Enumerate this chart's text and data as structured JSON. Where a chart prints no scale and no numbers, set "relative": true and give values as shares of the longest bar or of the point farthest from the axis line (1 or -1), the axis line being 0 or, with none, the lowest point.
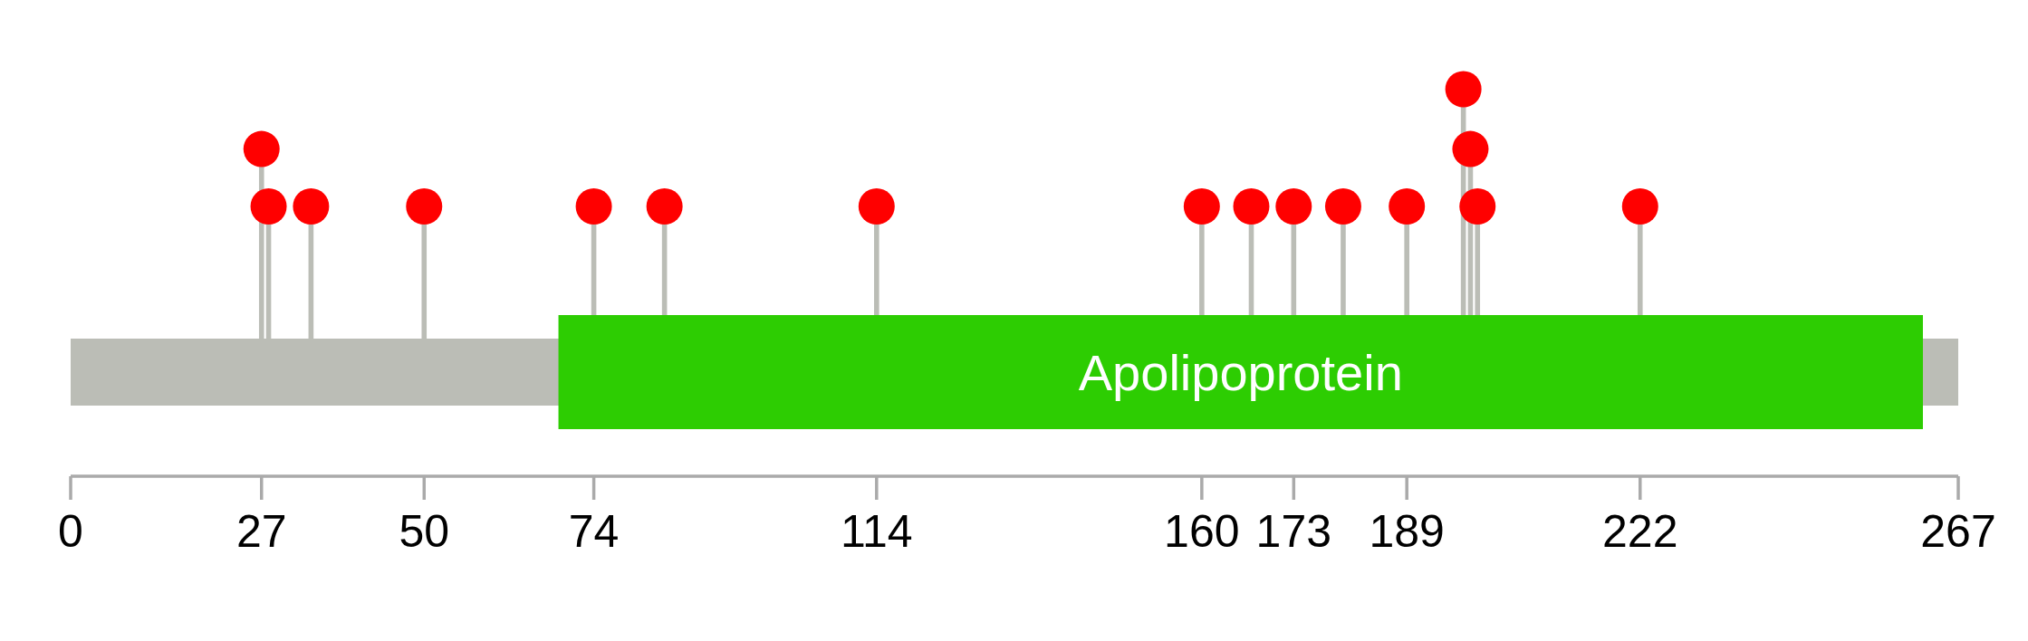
{
  "chart_data": {
    "type": "lollipop",
    "relative": true,
    "marker": "circle",
    "xlim": [
      0,
      267
    ],
    "xticks": [
      0,
      27,
      50,
      74,
      114,
      160,
      173,
      189,
      222,
      267
    ],
    "x": [
      27,
      28,
      34,
      50,
      74,
      84,
      114,
      160,
      167,
      173,
      180,
      189,
      197,
      198,
      199,
      222
    ],
    "series": [
      {
        "color": "#ff0000",
        "values": [
          0.76,
          0.53,
          0.53,
          0.53,
          0.53,
          0.53,
          0.53,
          0.53,
          0.53,
          0.53,
          0.53,
          0.53,
          1,
          0.76,
          0.53,
          0.53
        ]
      }
    ],
    "bands": [
      {
        "axis": "x",
        "from": 69,
        "to": 262,
        "label": "Apolipoprotein",
        "color": "#2dcd02"
      }
    ]
  }
}
